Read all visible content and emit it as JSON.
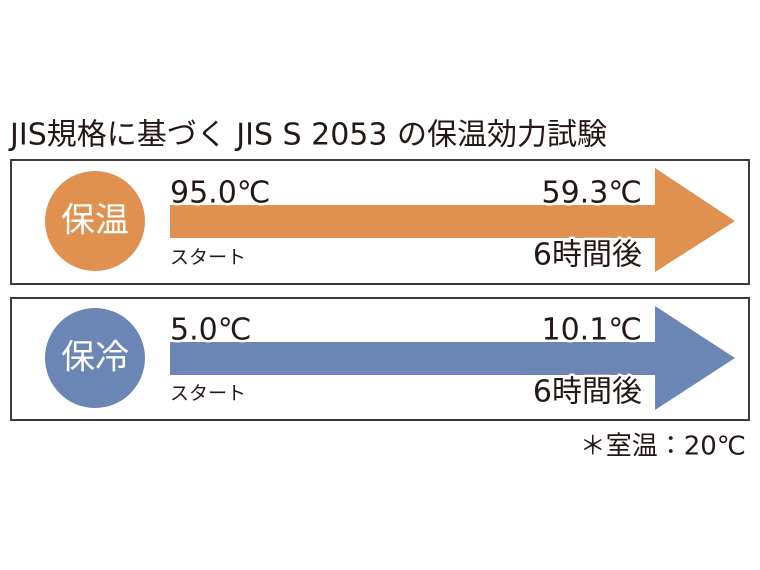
{
  "title": "JIS規格に基づく JIS S 2053 の保温効力試験",
  "panels": [
    {
      "label": "保温",
      "start_temp": "95.0℃",
      "end_temp": "59.3℃",
      "start_label": "スタート",
      "end_label": "6時間後"
    },
    {
      "label": "保冷",
      "start_temp": "5.0℃",
      "end_temp": "10.1℃",
      "start_label": "スタート",
      "end_label": "6時間後"
    }
  ],
  "note": "＊室温：20℃"
}
